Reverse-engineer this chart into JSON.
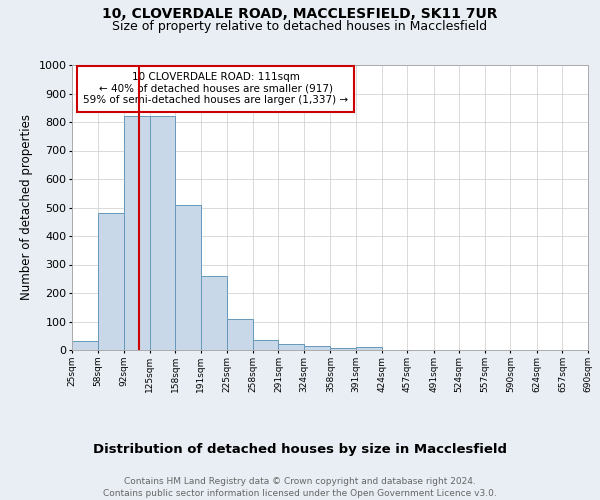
{
  "title1": "10, CLOVERDALE ROAD, MACCLESFIELD, SK11 7UR",
  "title2": "Size of property relative to detached houses in Macclesfield",
  "xlabel": "Distribution of detached houses by size in Macclesfield",
  "ylabel": "Number of detached properties",
  "footnote": "Contains HM Land Registry data © Crown copyright and database right 2024.\nContains public sector information licensed under the Open Government Licence v3.0.",
  "bin_edges": [
    25,
    58,
    92,
    125,
    158,
    191,
    225,
    258,
    291,
    324,
    358,
    391,
    424,
    457,
    491,
    524,
    557,
    590,
    624,
    657,
    690
  ],
  "bar_heights": [
    30,
    480,
    820,
    820,
    510,
    260,
    110,
    35,
    20,
    15,
    8,
    10,
    0,
    0,
    0,
    0,
    0,
    0,
    0,
    0
  ],
  "bar_color": "#c8d8e8",
  "bar_edgecolor": "#6699bb",
  "property_size": 111,
  "vline_color": "#cc0000",
  "annotation_text": "10 CLOVERDALE ROAD: 111sqm\n← 40% of detached houses are smaller (917)\n59% of semi-detached houses are larger (1,337) →",
  "annotation_box_edgecolor": "#cc0000",
  "ylim": [
    0,
    1000
  ],
  "yticks": [
    0,
    100,
    200,
    300,
    400,
    500,
    600,
    700,
    800,
    900,
    1000
  ],
  "background_color": "#e8eef4",
  "plot_bg_color": "#ffffff",
  "title1_fontsize": 10,
  "title2_fontsize": 9,
  "xlabel_fontsize": 9.5,
  "ylabel_fontsize": 8.5,
  "footnote_fontsize": 6.5,
  "annotation_fontsize": 7.5
}
